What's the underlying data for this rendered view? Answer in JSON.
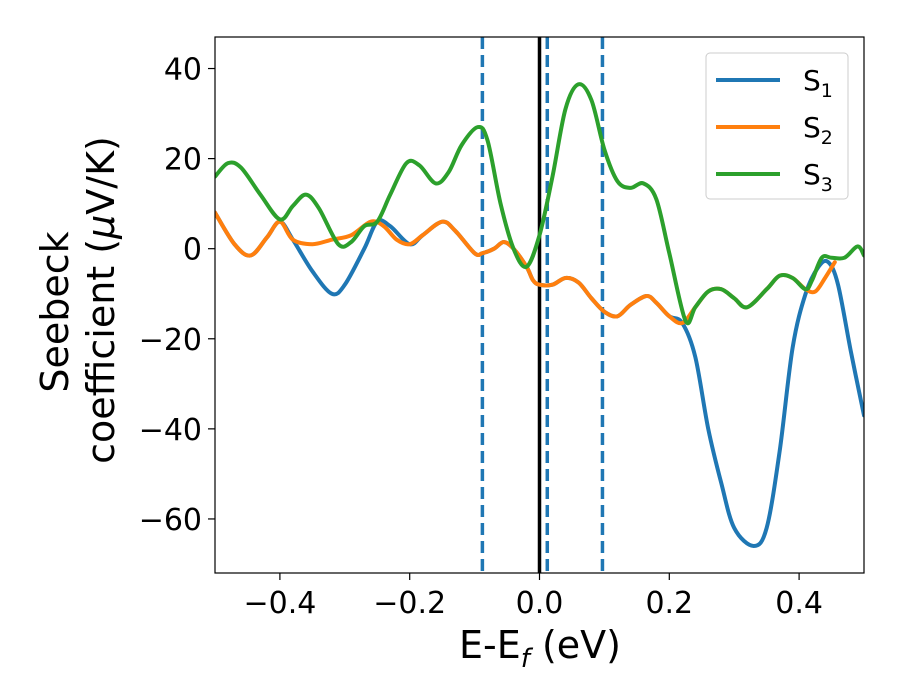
{
  "chart_data": {
    "type": "line",
    "xlabel": {
      "main": "E-E",
      "sub": "f",
      "suffix": " (eV)"
    },
    "ylabel": {
      "line1": "Seebeck",
      "line2": "coefficient  (",
      "mu": "μ",
      "unit": "V/K)"
    },
    "xlim": [
      -0.5,
      0.5
    ],
    "ylim": [
      -72,
      47
    ],
    "xticks": [
      -0.4,
      -0.2,
      0.0,
      0.2,
      0.4
    ],
    "xtick_labels": [
      "−0.4",
      "−0.2",
      "0.0",
      "0.2",
      "0.4"
    ],
    "yticks": [
      40,
      20,
      0,
      -20,
      -40,
      -60
    ],
    "ytick_labels": [
      "40",
      "20",
      "0",
      "−20",
      "−40",
      "−60"
    ],
    "grid": false,
    "legend_position": "top-right",
    "fermi_line": {
      "x": 0.0,
      "color": "#000000"
    },
    "dashed_lines": {
      "x": [
        -0.088,
        0.012,
        0.097
      ],
      "color": "#1f77b4"
    },
    "series": [
      {
        "name": "S",
        "subscript": "1",
        "color": "#1f77b4",
        "points": [
          [
            -0.5,
            8
          ],
          [
            -0.47,
            1
          ],
          [
            -0.445,
            -1.5
          ],
          [
            -0.42,
            2.5
          ],
          [
            -0.4,
            6
          ],
          [
            -0.38,
            2
          ],
          [
            -0.35,
            -5
          ],
          [
            -0.32,
            -10
          ],
          [
            -0.3,
            -8
          ],
          [
            -0.27,
            0
          ],
          [
            -0.25,
            6
          ],
          [
            -0.23,
            5
          ],
          [
            -0.2,
            1
          ],
          [
            -0.18,
            3
          ],
          [
            -0.15,
            6
          ],
          [
            -0.13,
            4
          ],
          [
            -0.1,
            -1
          ],
          [
            -0.088,
            -1
          ],
          [
            -0.07,
            0
          ],
          [
            -0.055,
            1.5
          ],
          [
            -0.04,
            0
          ],
          [
            -0.02,
            -4
          ],
          [
            -0.01,
            -7
          ],
          [
            0.0,
            -8
          ],
          [
            0.02,
            -8
          ],
          [
            0.04,
            -6.5
          ],
          [
            0.06,
            -7.5
          ],
          [
            0.08,
            -11
          ],
          [
            0.1,
            -14
          ],
          [
            0.12,
            -15
          ],
          [
            0.14,
            -12.5
          ],
          [
            0.165,
            -10.5
          ],
          [
            0.18,
            -12
          ],
          [
            0.2,
            -15
          ],
          [
            0.22,
            -16.5
          ],
          [
            0.24,
            -24
          ],
          [
            0.26,
            -40
          ],
          [
            0.28,
            -52
          ],
          [
            0.3,
            -62
          ],
          [
            0.33,
            -66
          ],
          [
            0.35,
            -62
          ],
          [
            0.37,
            -45
          ],
          [
            0.39,
            -22
          ],
          [
            0.41,
            -10
          ],
          [
            0.43,
            -4
          ],
          [
            0.445,
            -3
          ],
          [
            0.46,
            -8
          ],
          [
            0.48,
            -23
          ],
          [
            0.5,
            -37
          ]
        ]
      },
      {
        "name": "S",
        "subscript": "2",
        "color": "#ff7f0e",
        "points": [
          [
            -0.5,
            8
          ],
          [
            -0.47,
            1
          ],
          [
            -0.445,
            -1.5
          ],
          [
            -0.42,
            2.5
          ],
          [
            -0.4,
            6
          ],
          [
            -0.38,
            2
          ],
          [
            -0.35,
            1
          ],
          [
            -0.32,
            2
          ],
          [
            -0.29,
            3
          ],
          [
            -0.26,
            6
          ],
          [
            -0.24,
            5
          ],
          [
            -0.22,
            2
          ],
          [
            -0.2,
            1
          ],
          [
            -0.18,
            3
          ],
          [
            -0.15,
            6
          ],
          [
            -0.13,
            4
          ],
          [
            -0.1,
            -1
          ],
          [
            -0.088,
            -1
          ],
          [
            -0.07,
            0
          ],
          [
            -0.055,
            1.5
          ],
          [
            -0.04,
            0
          ],
          [
            -0.02,
            -4
          ],
          [
            -0.01,
            -7
          ],
          [
            0.0,
            -8
          ],
          [
            0.02,
            -8
          ],
          [
            0.04,
            -6.5
          ],
          [
            0.06,
            -7.5
          ],
          [
            0.08,
            -11
          ],
          [
            0.1,
            -14
          ],
          [
            0.12,
            -15
          ],
          [
            0.14,
            -12.5
          ],
          [
            0.165,
            -10.5
          ],
          [
            0.18,
            -12
          ],
          [
            0.2,
            -15
          ],
          [
            0.22,
            -16.5
          ],
          [
            0.24,
            -13
          ],
          [
            0.26,
            -9.5
          ],
          [
            0.28,
            -9
          ],
          [
            0.3,
            -11
          ],
          [
            0.32,
            -13
          ],
          [
            0.35,
            -9
          ],
          [
            0.37,
            -6
          ],
          [
            0.39,
            -6.5
          ],
          [
            0.41,
            -9
          ],
          [
            0.425,
            -9.5
          ],
          [
            0.44,
            -6.5
          ],
          [
            0.455,
            -3
          ]
        ]
      },
      {
        "name": "S",
        "subscript": "3",
        "color": "#2ca02c",
        "points": [
          [
            -0.5,
            16
          ],
          [
            -0.48,
            19
          ],
          [
            -0.46,
            18
          ],
          [
            -0.43,
            12
          ],
          [
            -0.4,
            6.5
          ],
          [
            -0.38,
            9.5
          ],
          [
            -0.36,
            12
          ],
          [
            -0.34,
            9
          ],
          [
            -0.31,
            1
          ],
          [
            -0.29,
            1.5
          ],
          [
            -0.27,
            5
          ],
          [
            -0.25,
            6
          ],
          [
            -0.23,
            12
          ],
          [
            -0.205,
            19
          ],
          [
            -0.185,
            18.5
          ],
          [
            -0.16,
            14.5
          ],
          [
            -0.14,
            17
          ],
          [
            -0.12,
            23
          ],
          [
            -0.095,
            27
          ],
          [
            -0.08,
            24
          ],
          [
            -0.06,
            10
          ],
          [
            -0.04,
            0
          ],
          [
            -0.02,
            -4
          ],
          [
            0.0,
            3
          ],
          [
            0.02,
            16
          ],
          [
            0.04,
            31
          ],
          [
            0.06,
            36.5
          ],
          [
            0.08,
            33
          ],
          [
            0.1,
            22
          ],
          [
            0.12,
            15
          ],
          [
            0.14,
            13.5
          ],
          [
            0.16,
            14.5
          ],
          [
            0.18,
            11
          ],
          [
            0.2,
            -1
          ],
          [
            0.225,
            -16
          ],
          [
            0.24,
            -13
          ],
          [
            0.26,
            -9.5
          ],
          [
            0.28,
            -9
          ],
          [
            0.3,
            -11
          ],
          [
            0.32,
            -13
          ],
          [
            0.35,
            -9
          ],
          [
            0.37,
            -6
          ],
          [
            0.39,
            -6.5
          ],
          [
            0.41,
            -9
          ],
          [
            0.42,
            -7
          ],
          [
            0.435,
            -2
          ],
          [
            0.45,
            -2
          ],
          [
            0.47,
            -2
          ],
          [
            0.49,
            0.5
          ],
          [
            0.5,
            -1.5
          ]
        ]
      }
    ]
  }
}
